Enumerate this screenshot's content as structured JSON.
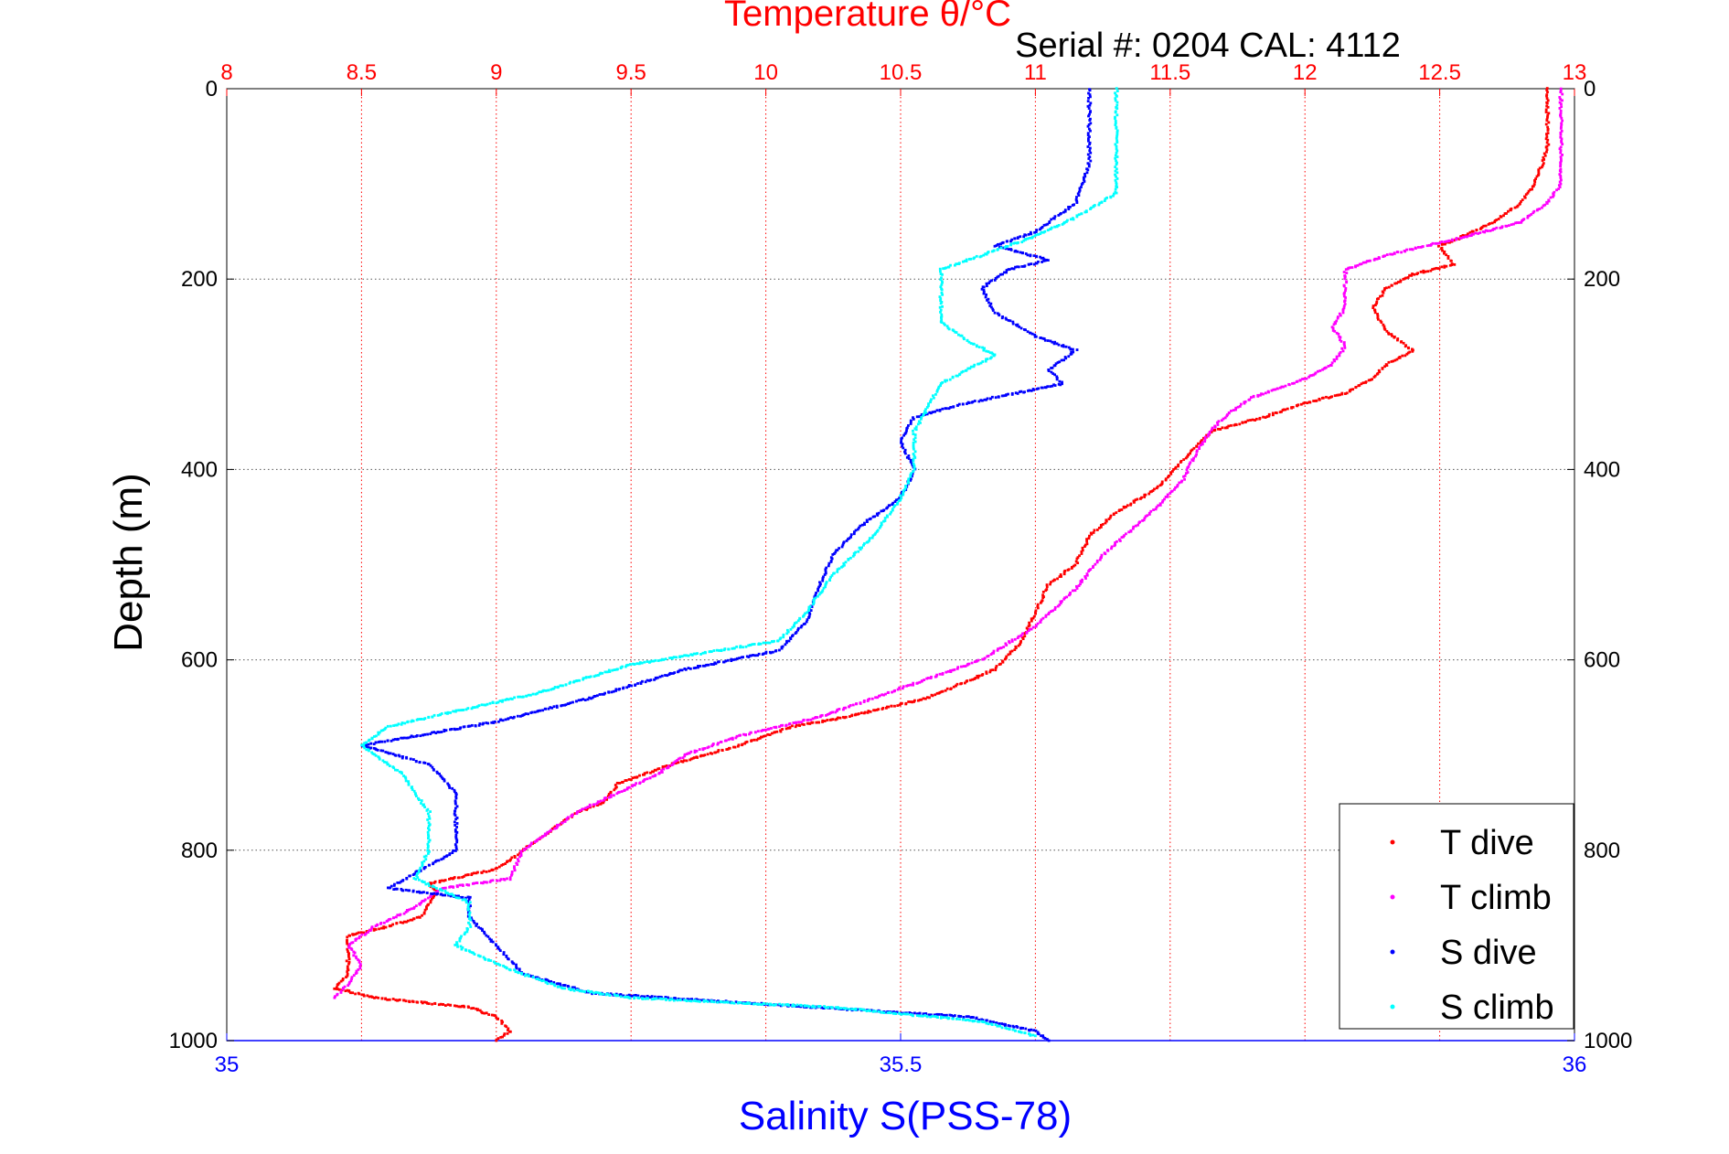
{
  "chart_data": {
    "type": "scatter",
    "title": "Temperature θ/°C",
    "subtitle": "Serial #: 0204  CAL: 4112",
    "ylabel": "Depth (m)",
    "xlabel": "Salinity S(PSS-78)",
    "y_axis": {
      "range": [
        0,
        1000
      ],
      "reversed": true,
      "ticks": [
        0,
        200,
        400,
        600,
        800,
        1000
      ]
    },
    "x_top_axis": {
      "name": "Temperature",
      "range": [
        8,
        13
      ],
      "ticks": [
        8,
        8.5,
        9,
        9.5,
        10,
        10.5,
        11,
        11.5,
        12,
        12.5,
        13
      ],
      "tick_labels": [
        "8",
        "8.5",
        "9",
        "9.5",
        "10",
        "10.5",
        "11",
        "11.5",
        "12",
        "12.5",
        "13"
      ],
      "color": "#ff0000"
    },
    "x_bottom_axis": {
      "name": "Salinity",
      "range": [
        35,
        36
      ],
      "ticks": [
        35,
        35.5,
        36
      ],
      "tick_labels": [
        "35",
        "35.5",
        "36"
      ],
      "color": "#0000ff"
    },
    "grid": true,
    "legend_position": "bottom-right",
    "series": [
      {
        "name": "T dive",
        "axis": "temperature",
        "color": "#ff0000",
        "points": [
          [
            12.9,
            0
          ],
          [
            12.9,
            30
          ],
          [
            12.9,
            60
          ],
          [
            12.88,
            80
          ],
          [
            12.85,
            100
          ],
          [
            12.8,
            120
          ],
          [
            12.7,
            140
          ],
          [
            12.55,
            160
          ],
          [
            12.5,
            165
          ],
          [
            12.55,
            185
          ],
          [
            12.4,
            195
          ],
          [
            12.3,
            210
          ],
          [
            12.25,
            230
          ],
          [
            12.3,
            255
          ],
          [
            12.4,
            275
          ],
          [
            12.3,
            290
          ],
          [
            12.25,
            305
          ],
          [
            12.15,
            320
          ],
          [
            12.0,
            330
          ],
          [
            11.85,
            345
          ],
          [
            11.65,
            360
          ],
          [
            11.55,
            390
          ],
          [
            11.45,
            420
          ],
          [
            11.3,
            445
          ],
          [
            11.2,
            470
          ],
          [
            11.15,
            500
          ],
          [
            11.05,
            520
          ],
          [
            11.0,
            550
          ],
          [
            10.95,
            580
          ],
          [
            10.85,
            610
          ],
          [
            10.6,
            640
          ],
          [
            10.3,
            660
          ],
          [
            10.1,
            670
          ],
          [
            9.9,
            690
          ],
          [
            9.65,
            710
          ],
          [
            9.45,
            730
          ],
          [
            9.4,
            750
          ],
          [
            9.3,
            760
          ],
          [
            9.15,
            790
          ],
          [
            9.0,
            820
          ],
          [
            8.75,
            835
          ],
          [
            8.78,
            845
          ],
          [
            8.72,
            870
          ],
          [
            8.6,
            880
          ],
          [
            8.45,
            890
          ],
          [
            8.45,
            910
          ],
          [
            8.45,
            930
          ],
          [
            8.4,
            945
          ],
          [
            8.55,
            955
          ],
          [
            8.9,
            965
          ],
          [
            9.0,
            975
          ],
          [
            9.05,
            990
          ],
          [
            9.0,
            1000
          ]
        ]
      },
      {
        "name": "T climb",
        "axis": "temperature",
        "color": "#ff00ff",
        "points": [
          [
            12.95,
            0
          ],
          [
            12.95,
            40
          ],
          [
            12.95,
            80
          ],
          [
            12.95,
            100
          ],
          [
            12.9,
            120
          ],
          [
            12.8,
            140
          ],
          [
            12.6,
            155
          ],
          [
            12.45,
            165
          ],
          [
            12.3,
            175
          ],
          [
            12.15,
            190
          ],
          [
            12.15,
            210
          ],
          [
            12.15,
            230
          ],
          [
            12.1,
            250
          ],
          [
            12.15,
            270
          ],
          [
            12.1,
            290
          ],
          [
            12.0,
            305
          ],
          [
            11.8,
            325
          ],
          [
            11.7,
            345
          ],
          [
            11.65,
            360
          ],
          [
            11.6,
            380
          ],
          [
            11.55,
            410
          ],
          [
            11.45,
            440
          ],
          [
            11.35,
            465
          ],
          [
            11.25,
            490
          ],
          [
            11.15,
            525
          ],
          [
            11.0,
            565
          ],
          [
            10.8,
            600
          ],
          [
            10.5,
            630
          ],
          [
            10.2,
            660
          ],
          [
            9.9,
            680
          ],
          [
            9.7,
            700
          ],
          [
            9.6,
            720
          ],
          [
            9.45,
            740
          ],
          [
            9.3,
            760
          ],
          [
            9.2,
            780
          ],
          [
            9.1,
            800
          ],
          [
            9.05,
            830
          ],
          [
            8.8,
            840
          ],
          [
            8.7,
            860
          ],
          [
            8.55,
            880
          ],
          [
            8.45,
            900
          ],
          [
            8.5,
            920
          ],
          [
            8.45,
            940
          ],
          [
            8.4,
            955
          ]
        ]
      },
      {
        "name": "S dive",
        "axis": "salinity",
        "color": "#0000ff",
        "points": [
          [
            35.64,
            0
          ],
          [
            35.64,
            40
          ],
          [
            35.64,
            80
          ],
          [
            35.63,
            120
          ],
          [
            35.6,
            150
          ],
          [
            35.57,
            165
          ],
          [
            35.61,
            180
          ],
          [
            35.58,
            190
          ],
          [
            35.56,
            210
          ],
          [
            35.57,
            235
          ],
          [
            35.6,
            260
          ],
          [
            35.63,
            275
          ],
          [
            35.61,
            295
          ],
          [
            35.62,
            310
          ],
          [
            35.55,
            330
          ],
          [
            35.51,
            345
          ],
          [
            35.5,
            370
          ],
          [
            35.51,
            400
          ],
          [
            35.5,
            430
          ],
          [
            35.47,
            460
          ],
          [
            35.45,
            490
          ],
          [
            35.44,
            520
          ],
          [
            35.43,
            560
          ],
          [
            35.41,
            590
          ],
          [
            35.34,
            610
          ],
          [
            35.27,
            640
          ],
          [
            35.2,
            665
          ],
          [
            35.1,
            690
          ],
          [
            35.15,
            710
          ],
          [
            35.17,
            740
          ],
          [
            35.17,
            770
          ],
          [
            35.17,
            800
          ],
          [
            35.12,
            840
          ],
          [
            35.18,
            850
          ],
          [
            35.18,
            870
          ],
          [
            35.2,
            900
          ],
          [
            35.22,
            930
          ],
          [
            35.27,
            950
          ],
          [
            35.38,
            960
          ],
          [
            35.55,
            975
          ],
          [
            35.6,
            990
          ],
          [
            35.61,
            1000
          ]
        ]
      },
      {
        "name": "S climb",
        "axis": "salinity",
        "color": "#00ffff",
        "points": [
          [
            35.66,
            0
          ],
          [
            35.66,
            40
          ],
          [
            35.66,
            80
          ],
          [
            35.66,
            110
          ],
          [
            35.63,
            135
          ],
          [
            35.6,
            155
          ],
          [
            35.57,
            170
          ],
          [
            35.55,
            180
          ],
          [
            35.53,
            190
          ],
          [
            35.53,
            220
          ],
          [
            35.53,
            245
          ],
          [
            35.55,
            265
          ],
          [
            35.57,
            280
          ],
          [
            35.53,
            310
          ],
          [
            35.52,
            335
          ],
          [
            35.51,
            360
          ],
          [
            35.51,
            400
          ],
          [
            35.5,
            430
          ],
          [
            35.48,
            470
          ],
          [
            35.45,
            510
          ],
          [
            35.43,
            550
          ],
          [
            35.41,
            580
          ],
          [
            35.3,
            605
          ],
          [
            35.23,
            635
          ],
          [
            35.12,
            670
          ],
          [
            35.1,
            690
          ],
          [
            35.13,
            720
          ],
          [
            35.15,
            760
          ],
          [
            35.15,
            800
          ],
          [
            35.14,
            830
          ],
          [
            35.18,
            855
          ],
          [
            35.18,
            880
          ],
          [
            35.17,
            900
          ],
          [
            35.21,
            925
          ],
          [
            35.25,
            945
          ],
          [
            35.3,
            955
          ],
          [
            35.45,
            965
          ],
          [
            35.56,
            980
          ],
          [
            35.6,
            995
          ]
        ]
      }
    ]
  }
}
